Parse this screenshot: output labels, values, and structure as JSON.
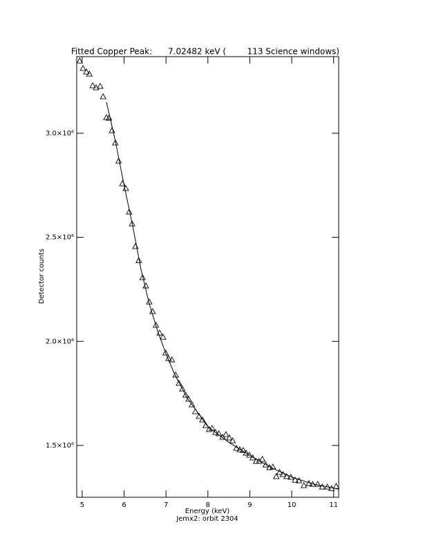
{
  "chart_data": {
    "type": "scatter",
    "title": "Fitted Copper Peak:      7.02482 keV (        113 Science windows)",
    "x_label": "Energy (keV)",
    "subtitle": "Jemx2: orbit 2304",
    "y_label": "Detector counts",
    "xlim": [
      4.87,
      11.12
    ],
    "ylim": [
      1251000,
      3368000
    ],
    "xticks": [
      5,
      6,
      7,
      8,
      9,
      10,
      11
    ],
    "yticks": [
      {
        "value": 1500000,
        "label": "1.5×10⁶"
      },
      {
        "value": 2000000,
        "label": "2.0×10⁶"
      },
      {
        "value": 2500000,
        "label": "2.5×10⁶"
      },
      {
        "value": 3000000,
        "label": "3.0×10⁶"
      }
    ],
    "series": [
      {
        "marker": "triangle",
        "color": "#000000",
        "x": [
          4.94,
          5.02,
          5.1,
          5.17,
          5.25,
          5.33,
          5.43,
          5.5,
          5.58,
          5.64,
          5.71,
          5.79,
          5.87,
          5.96,
          6.04,
          6.12,
          6.19,
          6.27,
          6.35,
          6.44,
          6.52,
          6.6,
          6.68,
          6.76,
          6.85,
          6.93,
          6.99,
          7.06,
          7.14,
          7.23,
          7.31,
          7.39,
          7.47,
          7.54,
          7.62,
          7.7,
          7.79,
          7.87,
          7.95,
          8.03,
          8.1,
          8.18,
          8.26,
          8.35,
          8.43,
          8.51,
          8.59,
          8.68,
          8.76,
          8.84,
          8.91,
          8.99,
          9.07,
          9.15,
          9.22,
          9.3,
          9.38,
          9.47,
          9.55,
          9.63,
          9.71,
          9.79,
          9.88,
          9.98,
          10.08,
          10.17,
          10.29,
          10.41,
          10.5,
          10.62,
          10.73,
          10.85,
          10.95,
          11.06
        ],
        "values": [
          3348000,
          3312000,
          3295000,
          3285000,
          3229000,
          3219000,
          3226000,
          3176000,
          3076000,
          3073000,
          3013000,
          2954000,
          2867000,
          2758000,
          2735000,
          2622000,
          2565000,
          2456000,
          2389000,
          2307000,
          2267000,
          2190000,
          2144000,
          2078000,
          2041000,
          2021000,
          1945000,
          1918000,
          1912000,
          1839000,
          1799000,
          1772000,
          1742000,
          1723000,
          1696000,
          1663000,
          1640000,
          1623000,
          1596000,
          1577000,
          1583000,
          1563000,
          1557000,
          1540000,
          1553000,
          1537000,
          1523000,
          1487000,
          1480000,
          1477000,
          1464000,
          1454000,
          1441000,
          1424000,
          1424000,
          1434000,
          1407000,
          1394000,
          1397000,
          1351000,
          1371000,
          1361000,
          1351000,
          1348000,
          1334000,
          1331000,
          1308000,
          1318000,
          1314000,
          1314000,
          1301000,
          1301000,
          1294000,
          1304000
        ]
      },
      {
        "marker": "line",
        "color": "#000000",
        "x": [
          5.58,
          5.8,
          6.0,
          6.2,
          6.4,
          6.6,
          6.8,
          7.0,
          7.2,
          7.5,
          8.0,
          8.5,
          9.0,
          9.5,
          10.0,
          10.5,
          11.0,
          11.12
        ],
        "values": [
          3149000,
          2955000,
          2750000,
          2560000,
          2350000,
          2180000,
          2050000,
          1940000,
          1845000,
          1730000,
          1590000,
          1515000,
          1452000,
          1395000,
          1348000,
          1315000,
          1295000,
          1290000
        ]
      }
    ]
  }
}
